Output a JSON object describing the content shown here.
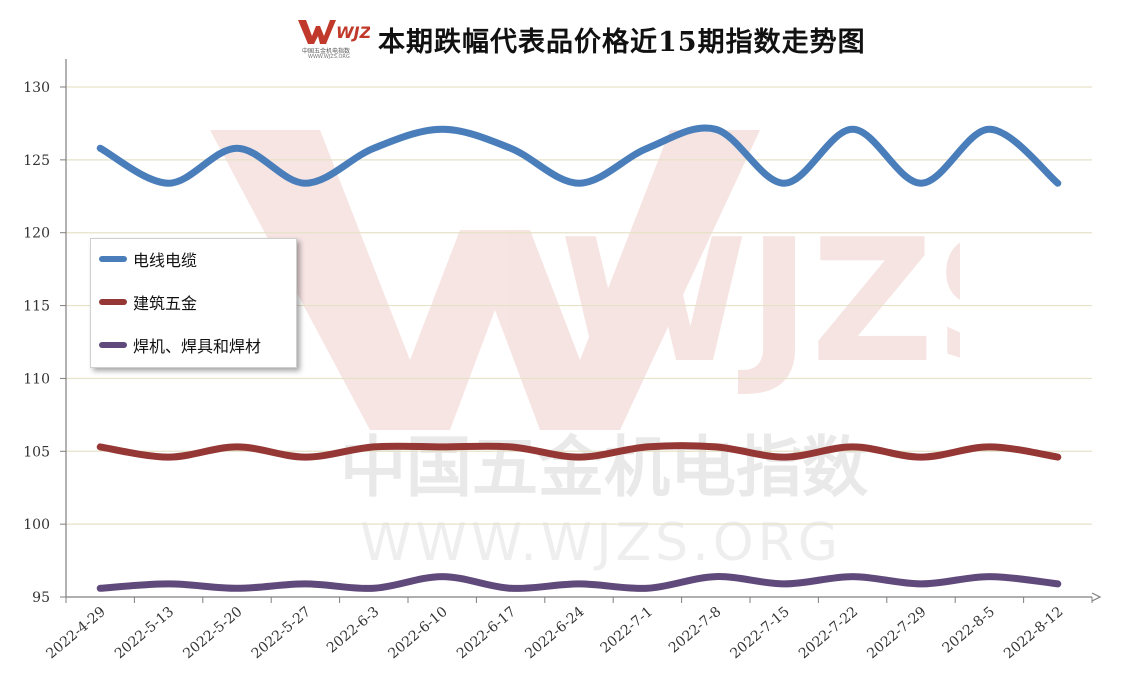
{
  "header": {
    "logo_text": "WJZS",
    "logo_sub": "中国五金机电指数",
    "logo_url": "WWW.WJZS.ORG",
    "title": "本期跌幅代表品价格近15期指数走势图"
  },
  "watermark": {
    "big": "WJZS",
    "line1": "中国五金机电指数",
    "line2": "WWW.WJZS.ORG"
  },
  "colors": {
    "series1": "#4a7ebb",
    "series2": "#953735",
    "series3": "#604a7b",
    "grid": "#e6e2c8",
    "axis": "#7f7f7f"
  },
  "chart_data": {
    "type": "line",
    "title": "本期跌幅代表品价格近15期指数走势图",
    "xlabel": "",
    "ylabel": "",
    "ylim": [
      95,
      130
    ],
    "yticks": [
      95,
      100,
      105,
      110,
      115,
      120,
      125,
      130
    ],
    "grid": true,
    "legend_position": "left",
    "categories": [
      "2022-4-29",
      "2022-5-13",
      "2022-5-20",
      "2022-5-27",
      "2022-6-3",
      "2022-6-10",
      "2022-6-17",
      "2022-6-24",
      "2022-7-1",
      "2022-7-8",
      "2022-7-15",
      "2022-7-22",
      "2022-7-29",
      "2022-8-5",
      "2022-8-12"
    ],
    "series": [
      {
        "name": "电线电缆",
        "color": "#4a7ebb",
        "values": [
          125.8,
          123.4,
          125.8,
          123.4,
          125.8,
          127.1,
          125.8,
          123.4,
          125.8,
          127.1,
          123.4,
          127.1,
          123.4,
          127.1,
          123.4
        ]
      },
      {
        "name": "建筑五金",
        "color": "#953735",
        "values": [
          105.3,
          104.6,
          105.3,
          104.6,
          105.3,
          105.3,
          105.3,
          104.6,
          105.3,
          105.3,
          104.6,
          105.3,
          104.6,
          105.3,
          104.6
        ]
      },
      {
        "name": "焊机、焊具和焊材",
        "color": "#604a7b",
        "values": [
          95.6,
          95.9,
          95.6,
          95.9,
          95.6,
          96.4,
          95.6,
          95.9,
          95.6,
          96.4,
          95.9,
          96.4,
          95.9,
          96.4,
          95.9
        ]
      }
    ]
  }
}
